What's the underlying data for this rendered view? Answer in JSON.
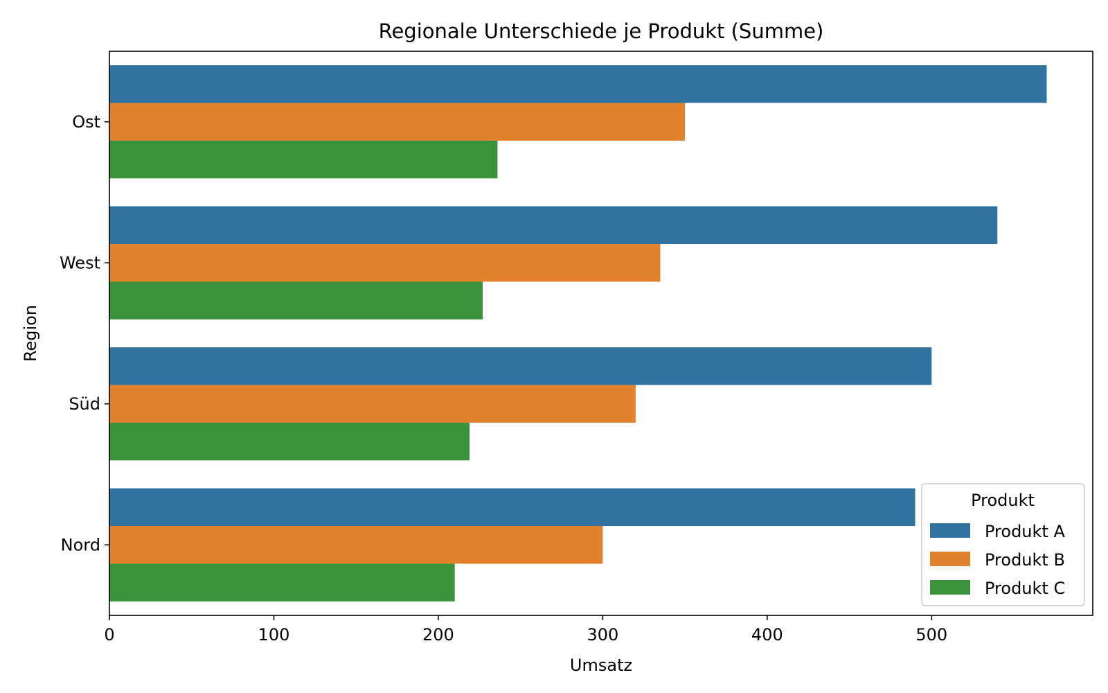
{
  "chart_data": {
    "type": "bar",
    "orientation": "horizontal",
    "title": "Regionale Unterschiede je Produkt (Summe)",
    "xlabel": "Umsatz",
    "ylabel": "Region",
    "categories": [
      "Ost",
      "West",
      "Süd",
      "Nord"
    ],
    "xlim": [
      0,
      598
    ],
    "xticks": [
      "0",
      "100",
      "200",
      "300",
      "400",
      "500"
    ],
    "grid": false,
    "series": [
      {
        "name": "Produkt A",
        "color": "#3274a1",
        "values": [
          570,
          540,
          500,
          490
        ]
      },
      {
        "name": "Produkt B",
        "color": "#e1812c",
        "values": [
          350,
          335,
          320,
          300
        ]
      },
      {
        "name": "Produkt C",
        "color": "#3a923a",
        "values": [
          236,
          227,
          219,
          210
        ]
      }
    ],
    "legend": {
      "title": "Produkt",
      "placement": "lower-right"
    }
  }
}
